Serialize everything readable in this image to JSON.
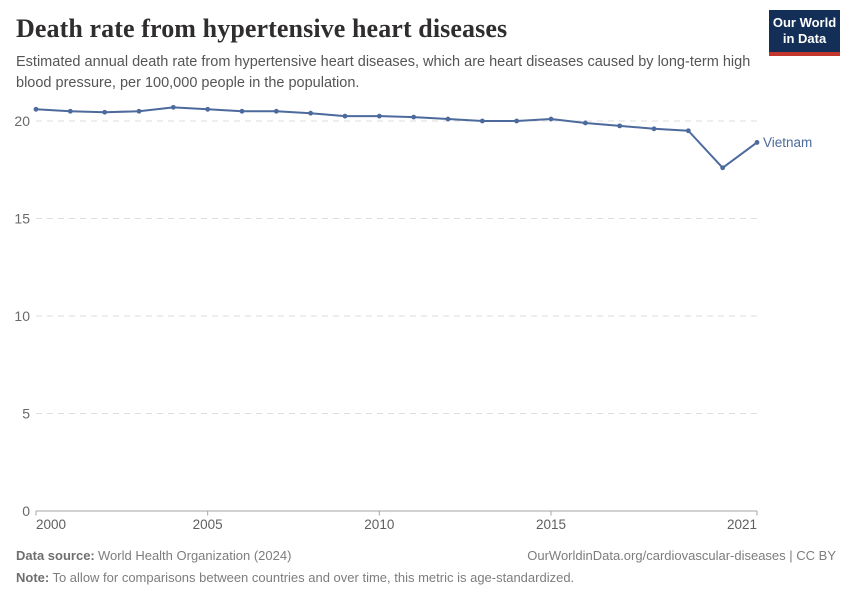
{
  "header": {
    "title": "Death rate from hypertensive heart diseases",
    "subtitle": "Estimated annual death rate from hypertensive heart diseases, which are heart diseases caused by long-term high blood pressure, per 100,000 people in the population.",
    "logo_line1": "Our World",
    "logo_line2": "in Data"
  },
  "chart_data": {
    "type": "line",
    "title": "Death rate from hypertensive heart diseases",
    "x": [
      2000,
      2001,
      2002,
      2003,
      2004,
      2005,
      2006,
      2007,
      2008,
      2009,
      2010,
      2011,
      2012,
      2013,
      2014,
      2015,
      2016,
      2017,
      2018,
      2019,
      2020,
      2021
    ],
    "series": [
      {
        "name": "Vietnam",
        "color": "#4c6a9c",
        "values": [
          20.6,
          20.5,
          20.45,
          20.5,
          20.7,
          20.6,
          20.5,
          20.5,
          20.4,
          20.25,
          20.25,
          20.2,
          20.1,
          20.0,
          20.0,
          20.1,
          19.9,
          19.75,
          19.6,
          19.5,
          17.6,
          18.9
        ]
      }
    ],
    "xlabel": "",
    "ylabel": "",
    "xlim": [
      2000,
      2021
    ],
    "ylim": [
      0,
      21.5
    ],
    "x_ticks": [
      2000,
      2005,
      2010,
      2015,
      2021
    ],
    "y_ticks": [
      0,
      5,
      10,
      15,
      20
    ],
    "grid": "horizontal-dashed",
    "legend": "line-end-label"
  },
  "footer": {
    "source_label": "Data source:",
    "source_value": "World Health Organization (2024)",
    "attribution": "OurWorldinData.org/cardiovascular-diseases | CC BY",
    "note_label": "Note:",
    "note_value": "To allow for comparisons between countries and over time, this metric is age-standardized."
  },
  "colors": {
    "line": "#4c6a9c",
    "gridline": "#dedede",
    "axis_line": "#a5a5a5",
    "y_tick_text": "#696969",
    "x_tick_text": "#5f5f5f",
    "title": "#2f2d2d",
    "subtitle": "#555555",
    "footer": "#7d7d7d",
    "logo_bg": "#132f57",
    "logo_red": "#c4362c"
  }
}
